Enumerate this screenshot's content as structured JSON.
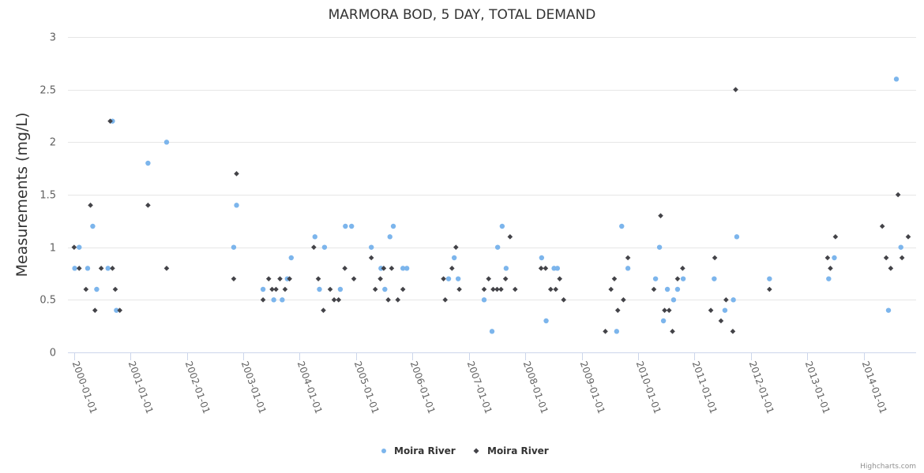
{
  "chart_data": {
    "type": "scatter",
    "title": "MARMORA BOD, 5 DAY, TOTAL DEMAND",
    "xlabel": "",
    "ylabel": "Measurements (mg/L)",
    "ylim": [
      0,
      3
    ],
    "yticks": [
      0,
      0.5,
      1,
      1.5,
      2,
      2.5,
      3
    ],
    "ytick_labels": [
      "0",
      "0.5",
      "1",
      "1.5",
      "2",
      "2.5",
      "3"
    ],
    "xlim": [
      1999.89,
      2014.93
    ],
    "xticks": [
      2000,
      2001,
      2002,
      2003,
      2004,
      2005,
      2006,
      2007,
      2008,
      2009,
      2010,
      2011,
      2012,
      2013,
      2014
    ],
    "xtick_labels": [
      "2000-01-01",
      "2001-01-01",
      "2002-01-01",
      "2003-01-01",
      "2004-01-01",
      "2005-01-01",
      "2006-01-01",
      "2007-01-01",
      "2008-01-01",
      "2009-01-01",
      "2010-01-01",
      "2011-01-01",
      "2012-01-01",
      "2013-01-01",
      "2014-01-01"
    ],
    "grid": true,
    "legend": "bottom-center",
    "series": [
      {
        "name": "Moira River",
        "marker": "circle",
        "color": "#7cb5ec",
        "points": [
          [
            2000.01,
            0.8
          ],
          [
            2000.09,
            1.0
          ],
          [
            2000.24,
            0.8
          ],
          [
            2000.33,
            1.2
          ],
          [
            2000.4,
            0.6
          ],
          [
            2000.6,
            0.8
          ],
          [
            2000.68,
            2.2
          ],
          [
            2000.75,
            0.4
          ],
          [
            2001.31,
            1.8
          ],
          [
            2001.64,
            2.0
          ],
          [
            2002.83,
            1.0
          ],
          [
            2002.88,
            1.4
          ],
          [
            2003.35,
            0.6
          ],
          [
            2003.54,
            0.5
          ],
          [
            2003.69,
            0.5
          ],
          [
            2003.78,
            0.7
          ],
          [
            2003.85,
            0.9
          ],
          [
            2004.27,
            1.1
          ],
          [
            2004.35,
            0.6
          ],
          [
            2004.44,
            1.0
          ],
          [
            2004.72,
            0.6
          ],
          [
            2004.81,
            1.2
          ],
          [
            2004.92,
            1.2
          ],
          [
            2005.27,
            1.0
          ],
          [
            2005.44,
            0.8
          ],
          [
            2005.51,
            0.6
          ],
          [
            2005.6,
            1.1
          ],
          [
            2005.66,
            1.2
          ],
          [
            2005.83,
            0.8
          ],
          [
            2005.9,
            0.8
          ],
          [
            2006.64,
            0.7
          ],
          [
            2006.74,
            0.9
          ],
          [
            2006.81,
            0.7
          ],
          [
            2007.27,
            0.5
          ],
          [
            2007.41,
            0.2
          ],
          [
            2007.51,
            1.0
          ],
          [
            2007.59,
            1.2
          ],
          [
            2007.66,
            0.8
          ],
          [
            2008.29,
            0.9
          ],
          [
            2008.37,
            0.3
          ],
          [
            2008.51,
            0.8
          ],
          [
            2008.57,
            0.8
          ],
          [
            2009.62,
            0.2
          ],
          [
            2009.71,
            1.2
          ],
          [
            2009.82,
            0.8
          ],
          [
            2010.31,
            0.7
          ],
          [
            2010.38,
            1.0
          ],
          [
            2010.45,
            0.3
          ],
          [
            2010.52,
            0.6
          ],
          [
            2010.63,
            0.5
          ],
          [
            2010.7,
            0.6
          ],
          [
            2010.8,
            0.7
          ],
          [
            2011.35,
            0.7
          ],
          [
            2011.54,
            0.4
          ],
          [
            2011.69,
            0.5
          ],
          [
            2011.75,
            1.1
          ],
          [
            2012.33,
            0.7
          ],
          [
            2013.38,
            0.7
          ],
          [
            2013.48,
            0.9
          ],
          [
            2014.44,
            0.4
          ],
          [
            2014.58,
            2.6
          ],
          [
            2014.66,
            1.0
          ]
        ]
      },
      {
        "name": "Moira River",
        "marker": "diamond",
        "color": "#434348",
        "points": [
          [
            2000.0,
            1.0
          ],
          [
            2000.09,
            0.8
          ],
          [
            2000.21,
            0.6
          ],
          [
            2000.29,
            1.4
          ],
          [
            2000.37,
            0.4
          ],
          [
            2000.48,
            0.8
          ],
          [
            2000.64,
            2.2
          ],
          [
            2000.68,
            0.8
          ],
          [
            2000.73,
            0.6
          ],
          [
            2000.81,
            0.4
          ],
          [
            2001.31,
            1.4
          ],
          [
            2001.64,
            0.8
          ],
          [
            2002.83,
            0.7
          ],
          [
            2002.88,
            1.7
          ],
          [
            2003.35,
            0.5
          ],
          [
            2003.45,
            0.7
          ],
          [
            2003.51,
            0.6
          ],
          [
            2003.58,
            0.6
          ],
          [
            2003.65,
            0.7
          ],
          [
            2003.74,
            0.6
          ],
          [
            2003.82,
            0.7
          ],
          [
            2004.25,
            1.0
          ],
          [
            2004.33,
            0.7
          ],
          [
            2004.42,
            0.4
          ],
          [
            2004.54,
            0.6
          ],
          [
            2004.61,
            0.5
          ],
          [
            2004.69,
            0.5
          ],
          [
            2004.8,
            0.8
          ],
          [
            2004.96,
            0.7
          ],
          [
            2005.27,
            0.9
          ],
          [
            2005.34,
            0.6
          ],
          [
            2005.43,
            0.7
          ],
          [
            2005.49,
            0.8
          ],
          [
            2005.57,
            0.5
          ],
          [
            2005.63,
            0.8
          ],
          [
            2005.74,
            0.5
          ],
          [
            2005.83,
            0.6
          ],
          [
            2006.55,
            0.7
          ],
          [
            2006.58,
            0.5
          ],
          [
            2006.7,
            0.8
          ],
          [
            2006.77,
            1.0
          ],
          [
            2006.83,
            0.6
          ],
          [
            2007.27,
            0.6
          ],
          [
            2007.35,
            0.7
          ],
          [
            2007.43,
            0.6
          ],
          [
            2007.5,
            0.6
          ],
          [
            2007.57,
            0.6
          ],
          [
            2007.65,
            0.7
          ],
          [
            2007.73,
            1.1
          ],
          [
            2007.82,
            0.6
          ],
          [
            2008.28,
            0.8
          ],
          [
            2008.36,
            0.8
          ],
          [
            2008.45,
            0.6
          ],
          [
            2008.54,
            0.6
          ],
          [
            2008.61,
            0.7
          ],
          [
            2008.68,
            0.5
          ],
          [
            2009.42,
            0.2
          ],
          [
            2009.52,
            0.6
          ],
          [
            2009.58,
            0.7
          ],
          [
            2009.64,
            0.4
          ],
          [
            2009.74,
            0.5
          ],
          [
            2009.82,
            0.9
          ],
          [
            2010.28,
            0.6
          ],
          [
            2010.4,
            1.3
          ],
          [
            2010.47,
            0.4
          ],
          [
            2010.55,
            0.4
          ],
          [
            2010.61,
            0.2
          ],
          [
            2010.7,
            0.7
          ],
          [
            2010.79,
            0.8
          ],
          [
            2011.29,
            0.4
          ],
          [
            2011.36,
            0.9
          ],
          [
            2011.47,
            0.3
          ],
          [
            2011.56,
            0.5
          ],
          [
            2011.68,
            0.2
          ],
          [
            2011.73,
            2.5
          ],
          [
            2012.33,
            0.6
          ],
          [
            2013.36,
            0.9
          ],
          [
            2013.41,
            0.8
          ],
          [
            2013.5,
            1.1
          ],
          [
            2014.33,
            1.2
          ],
          [
            2014.4,
            0.9
          ],
          [
            2014.48,
            0.8
          ],
          [
            2014.61,
            1.5
          ],
          [
            2014.68,
            0.9
          ],
          [
            2014.79,
            1.1
          ]
        ]
      }
    ],
    "credits": "Highcharts.com"
  }
}
